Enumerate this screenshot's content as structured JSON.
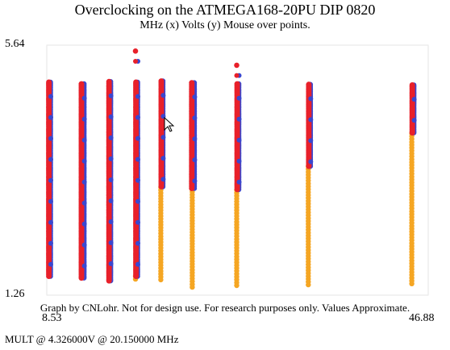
{
  "chart_data": {
    "type": "scatter",
    "title": "Overclocking on the ATMEGA168-20PU DIP 0820",
    "subtitle": "MHz (x) Volts (y) Mouse over points.",
    "xlim": [
      8.53,
      46.88
    ],
    "ylim": [
      1.26,
      5.64
    ],
    "x_tick_labels": [
      "8.53",
      "46.88"
    ],
    "y_tick_labels": [
      "5.64",
      "1.26"
    ],
    "series": [
      {
        "color": "#e8202a"
      },
      {
        "color": "#3a47cf"
      },
      {
        "color": "#f5a623"
      }
    ],
    "columns": [
      {
        "mhz": 8.53,
        "red_top": 5.0,
        "red_bottom": 1.57,
        "orange_bottom": null
      },
      {
        "mhz": 12.0,
        "red_top": 4.97,
        "red_bottom": 1.53,
        "orange_bottom": null
      },
      {
        "mhz": 14.75,
        "red_top": 5.01,
        "red_bottom": 1.5,
        "orange_bottom": null
      },
      {
        "mhz": 17.53,
        "red_top": 5.0,
        "red_bottom": 1.58,
        "orange_bottom": 1.5,
        "outlier_top": 5.55
      },
      {
        "mhz": 20.15,
        "red_top": 5.02,
        "red_bottom": 3.15,
        "orange_bottom": 1.47
      },
      {
        "mhz": 23.4,
        "red_top": 4.99,
        "red_bottom": 3.12,
        "orange_bottom": 1.34
      },
      {
        "mhz": 28.0,
        "red_top": 4.97,
        "red_bottom": 3.1,
        "orange_bottom": 1.41,
        "outlier_top": 5.3
      },
      {
        "mhz": 35.4,
        "red_top": 4.96,
        "red_bottom": 3.52,
        "orange_bottom": 1.41
      },
      {
        "mhz": 46.1,
        "red_top": 4.95,
        "red_bottom": 4.1,
        "orange_bottom": 1.42
      }
    ]
  },
  "footer": "Graph by CNLohr. Not for design use. For research purposes only. Values Approximate.",
  "hover_readout": "MULT @ 4.326000V @ 20.150000 MHz"
}
